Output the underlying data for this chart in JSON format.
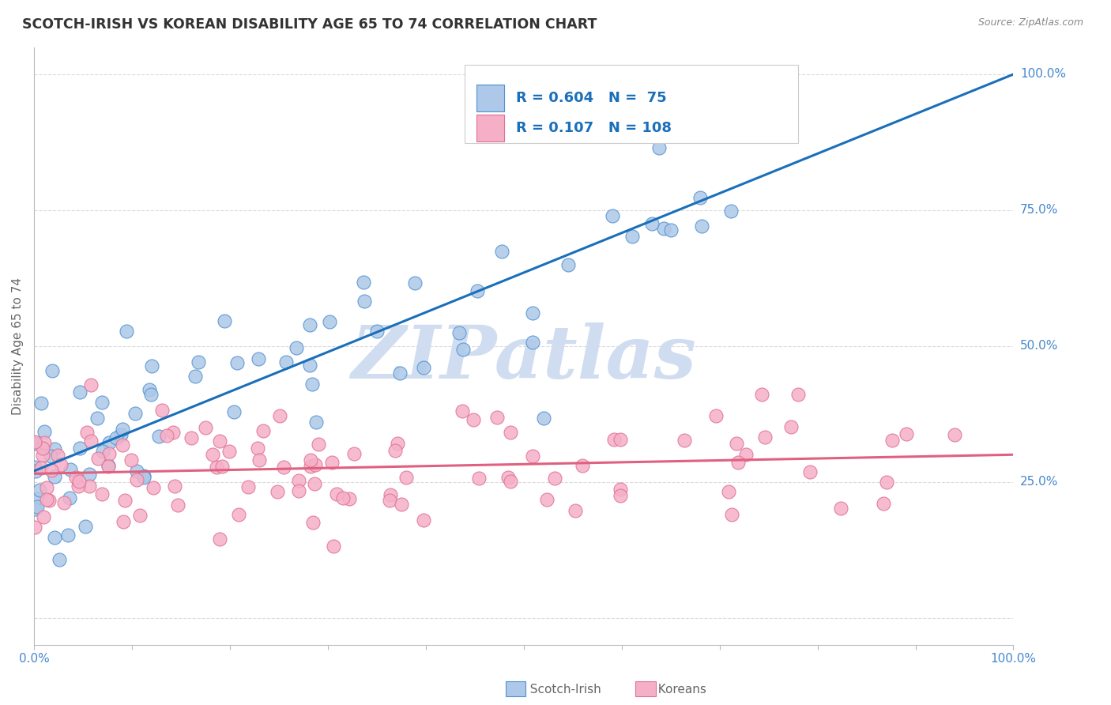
{
  "title": "SCOTCH-IRISH VS KOREAN DISABILITY AGE 65 TO 74 CORRELATION CHART",
  "source": "Source: ZipAtlas.com",
  "ylabel": "Disability Age 65 to 74",
  "xlim": [
    0.0,
    1.0
  ],
  "ylim": [
    -0.05,
    1.05
  ],
  "scotch_irish_R": 0.604,
  "scotch_irish_N": 75,
  "korean_R": 0.107,
  "korean_N": 108,
  "scotch_irish_color": "#adc8e8",
  "scotch_irish_edge_color": "#5090d0",
  "scotch_irish_line_color": "#1a6fba",
  "korean_color": "#f5b0c8",
  "korean_edge_color": "#e07090",
  "korean_line_color": "#e06080",
  "background_color": "#ffffff",
  "grid_color": "#d8d8d8",
  "watermark_text": "ZIPatlas",
  "watermark_color": "#d0ddf0",
  "right_axis_color": "#4488cc",
  "title_color": "#333333",
  "axis_label_color": "#666666",
  "tick_label_color": "#4488cc",
  "legend_border_color": "#cccccc",
  "bottom_legend_text_color": "#666666",
  "si_line_x0": 0.0,
  "si_line_y0": 0.27,
  "si_line_x1": 1.0,
  "si_line_y1": 1.0,
  "k_line_x0": 0.0,
  "k_line_y0": 0.265,
  "k_line_x1": 1.0,
  "k_line_y1": 0.3
}
